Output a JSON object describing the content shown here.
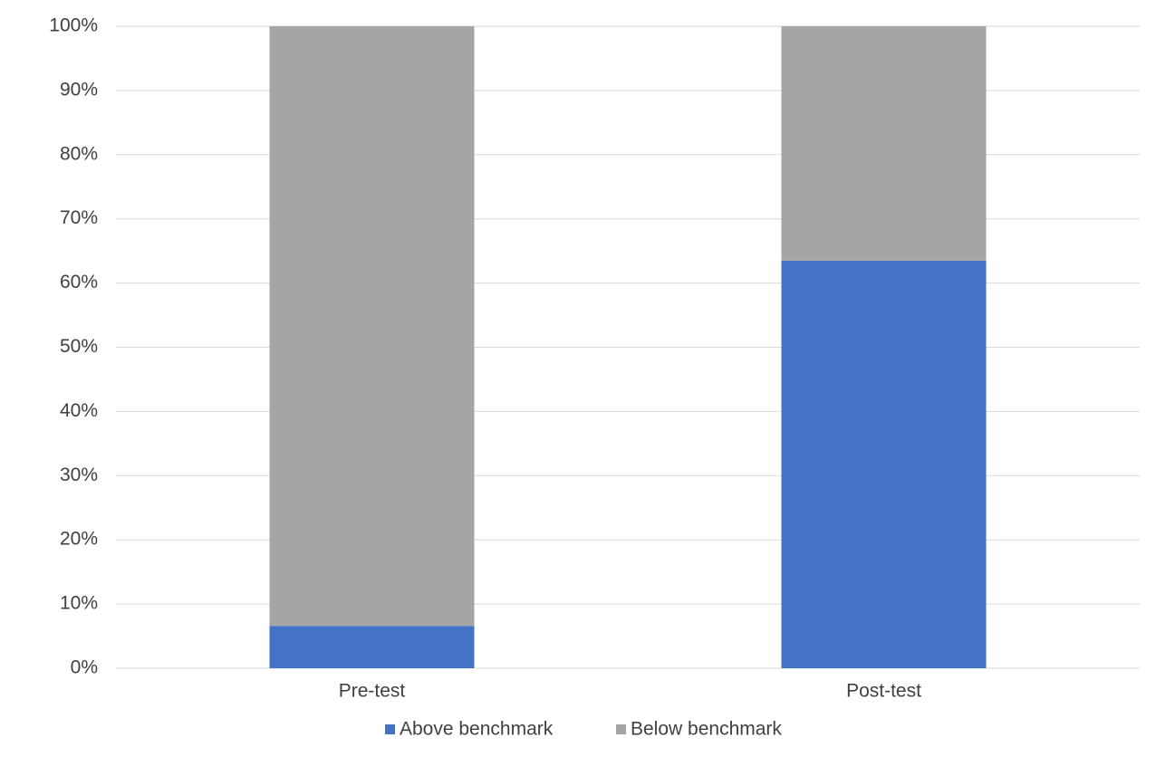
{
  "chart_data": {
    "type": "stacked_bar",
    "categories": [
      "Pre-test",
      "Post-test"
    ],
    "series": [
      {
        "name": "Above benchmark",
        "color": "#4472c4",
        "values": [
          6.6,
          63.5
        ]
      },
      {
        "name": "Below benchmark",
        "color": "#a5a5a5",
        "values": [
          93.4,
          36.5
        ]
      }
    ],
    "ylim": [
      0,
      100
    ],
    "yticks": [
      {
        "value": 0,
        "label": "0%"
      },
      {
        "value": 10,
        "label": "10%"
      },
      {
        "value": 20,
        "label": "20%"
      },
      {
        "value": 30,
        "label": "30%"
      },
      {
        "value": 40,
        "label": "40%"
      },
      {
        "value": 50,
        "label": "50%"
      },
      {
        "value": 60,
        "label": "60%"
      },
      {
        "value": 70,
        "label": "70%"
      },
      {
        "value": 80,
        "label": "80%"
      },
      {
        "value": 90,
        "label": "90%"
      },
      {
        "value": 100,
        "label": "100%"
      }
    ],
    "grid": true,
    "legend": "bottom"
  }
}
